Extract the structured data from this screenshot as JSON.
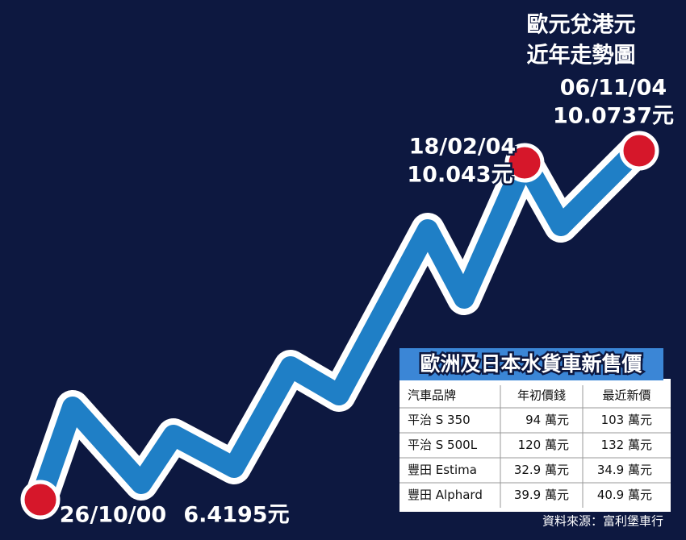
{
  "title": [
    "歐元兌港元",
    "近年走勢圖"
  ],
  "annotations": [
    {
      "date": "26/10/00",
      "value": "6.4195元"
    },
    {
      "date": "18/02/04",
      "value": "10.043元"
    },
    {
      "date": "06/11/04",
      "value": "10.0737元"
    }
  ],
  "table": {
    "title": "歐洲及日本水貨車新售價",
    "header": [
      "汽車品牌",
      "年初價錢",
      "最近新價"
    ],
    "rows": [
      [
        "平治 S 350",
        "94 萬元",
        "103 萬元"
      ],
      [
        "平治 S 500L",
        "120 萬元",
        "132 萬元"
      ],
      [
        "豐田 Estima",
        "32.9 萬元",
        "34.9 萬元"
      ],
      [
        "豐田 Alphard",
        "39.9 萬元",
        "40.9 萬元"
      ]
    ]
  },
  "source": "資料來源：富利堡車行"
}
